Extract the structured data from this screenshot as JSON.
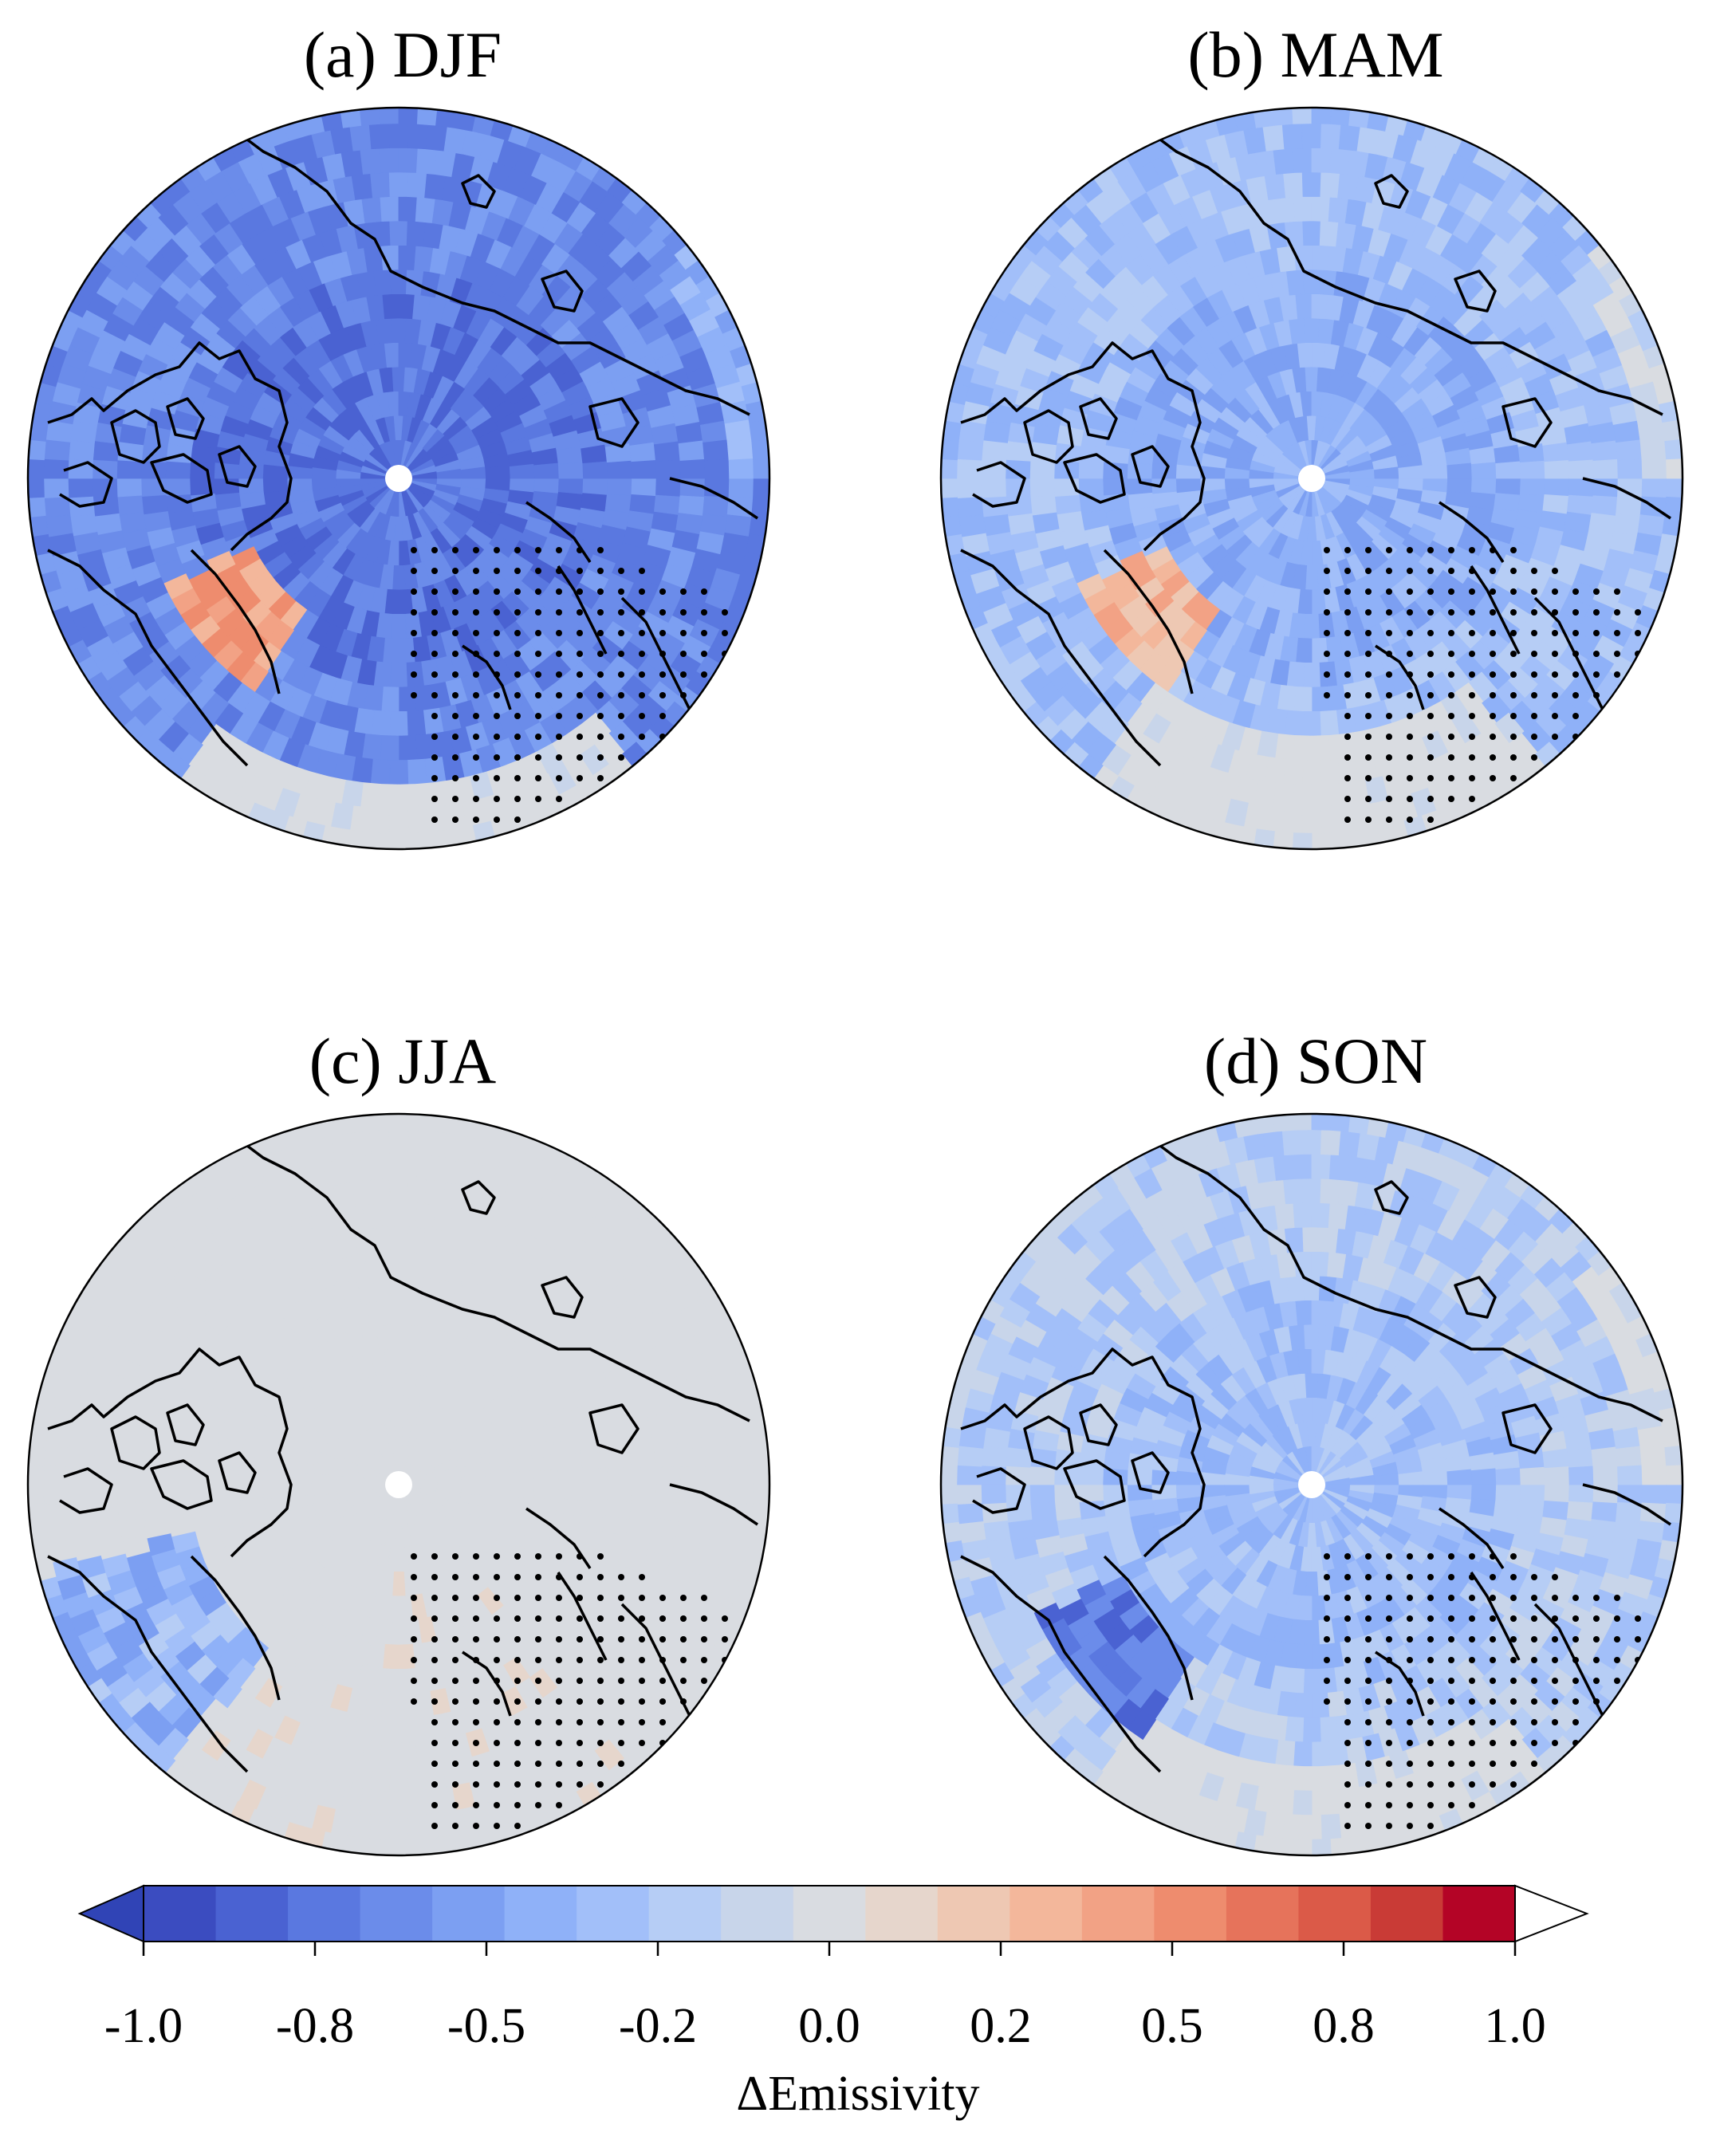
{
  "panels": [
    {
      "id": "a",
      "title": "(a) DJF",
      "field": "deep-blue"
    },
    {
      "id": "b",
      "title": "(b) MAM",
      "field": "medium-blue"
    },
    {
      "id": "c",
      "title": "(c) JJA",
      "field": "mostly-neutral"
    },
    {
      "id": "d",
      "title": "(d) SON",
      "field": "light-blue"
    }
  ],
  "colorbar": {
    "label": "ΔEmissivity",
    "ticks": [
      "-1.0",
      "-0.8",
      "-0.5",
      "-0.2",
      "0.0",
      "0.2",
      "0.5",
      "0.8",
      "1.0"
    ],
    "colors": [
      "#3b4cc0",
      "#4a62d2",
      "#5a78e0",
      "#6b8cea",
      "#7c9ff2",
      "#8fb1f8",
      "#a2bff9",
      "#b6cdf5",
      "#c8d5ea",
      "#d9dce1",
      "#e6d6cc",
      "#eec8b3",
      "#f3b79b",
      "#f2a285",
      "#ee8c6e",
      "#e6735b",
      "#db5a48",
      "#c93b36",
      "#b40426"
    ],
    "extend": "both",
    "range": [
      -1.0,
      1.0
    ]
  },
  "colors": {
    "neutral": "#dcdcdc",
    "coast": "#000000"
  }
}
